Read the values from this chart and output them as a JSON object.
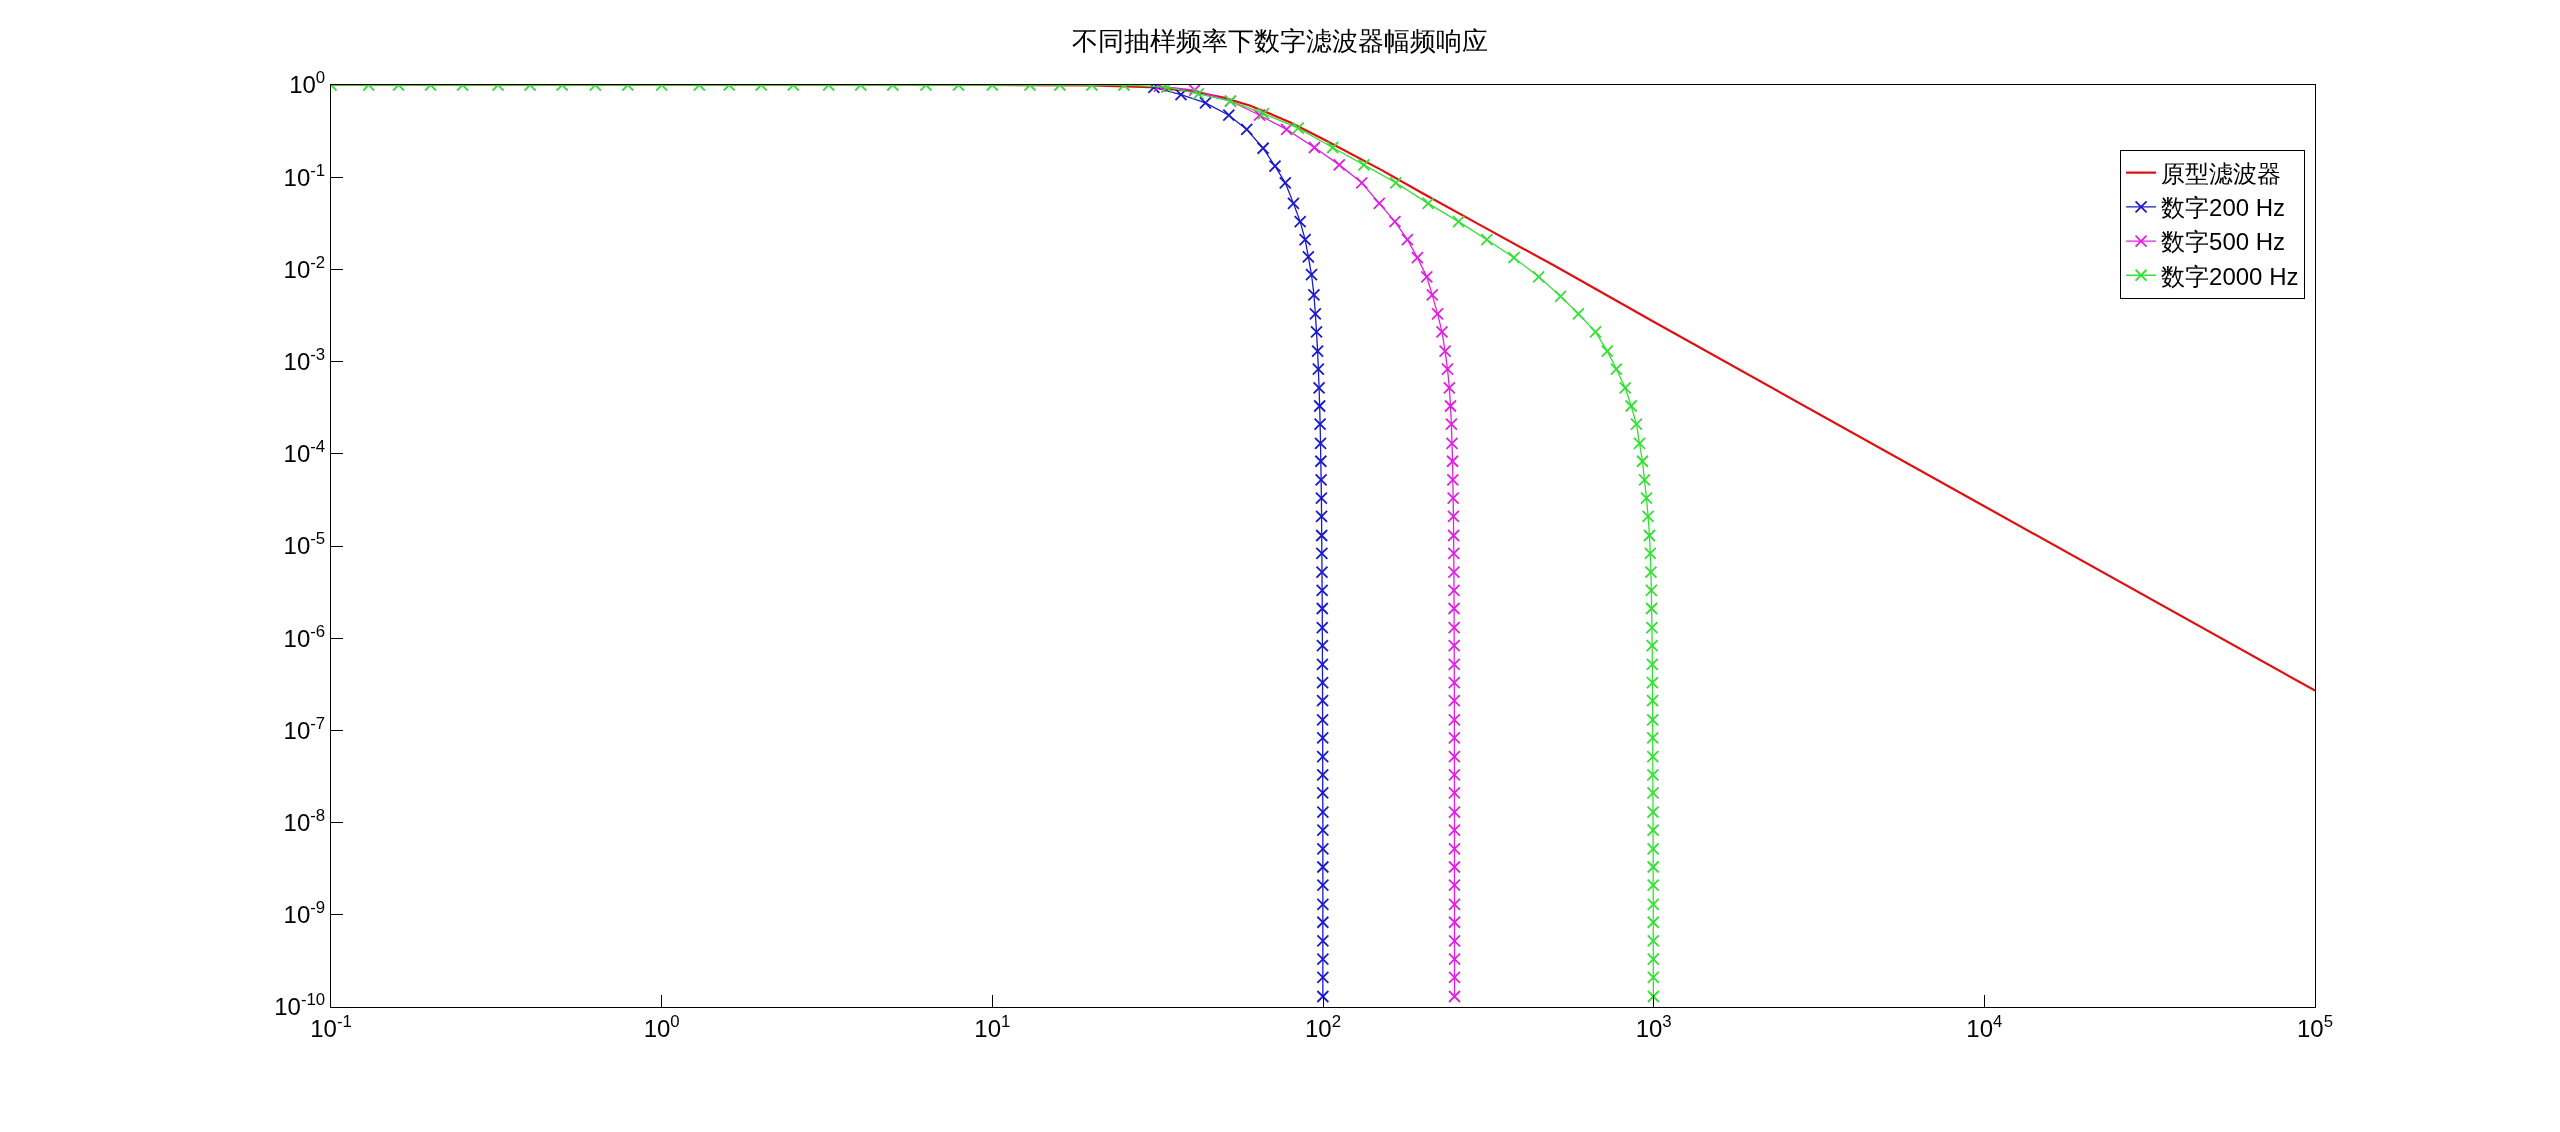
{
  "chart_data": {
    "type": "line",
    "title": "不同抽样频率下数字滤波器幅频响应",
    "log": "xy",
    "legend": "top right",
    "xlim": [
      0.1,
      100000
    ],
    "ylim": [
      1e-10,
      1
    ],
    "xticks": [
      {
        "value": 0.1,
        "label": "10$^{-1}$"
      },
      {
        "value": 1,
        "label": "10$^{0}$"
      },
      {
        "value": 10,
        "label": "10$^{1}$"
      },
      {
        "value": 100,
        "label": "10$^{2}$"
      },
      {
        "value": 1000,
        "label": "10$^{3}$"
      },
      {
        "value": 10000,
        "label": "10$^{4}$"
      },
      {
        "value": 100000,
        "label": "10$^{5}$"
      }
    ],
    "yticks": [
      {
        "value": 1,
        "label": "10$^{0}$"
      },
      {
        "value": 0.1,
        "label": "10$^{-1}$"
      },
      {
        "value": 0.01,
        "label": "10$^{-2}$"
      },
      {
        "value": 0.001,
        "label": "10$^{-3}$"
      },
      {
        "value": 0.0001,
        "label": "10$^{-4}$"
      },
      {
        "value": 1e-05,
        "label": "10$^{-5}$"
      },
      {
        "value": 1e-06,
        "label": "10$^{-6}$"
      },
      {
        "value": 1e-07,
        "label": "10$^{-7}$"
      },
      {
        "value": 1e-08,
        "label": "10$^{-8}$"
      },
      {
        "value": 1e-09,
        "label": "10$^{-9}$"
      },
      {
        "value": 1e-10,
        "label": "10$^{-10}$"
      }
    ],
    "series": [
      {
        "name": "原型滤波器",
        "color": "#e01010",
        "marker": "none",
        "x": [
          0.1,
          10,
          20,
          30,
          40,
          50,
          60,
          70,
          80,
          100,
          150,
          200,
          300,
          500,
          1000,
          10000,
          100000
        ],
        "values": [
          1,
          1,
          0.99,
          0.95,
          0.86,
          0.73,
          0.6,
          0.48,
          0.39,
          0.26,
          0.12,
          0.067,
          0.03,
          0.011,
          0.0027,
          2.7e-05,
          2.7e-07
        ]
      },
      {
        "name": "数字200 Hz",
        "color": "#1a1acc",
        "marker": "cross",
        "x": [
          30.8,
          37.2,
          44.1,
          51.9,
          58.8,
          65.9,
          71.6,
          76.9,
          81.4,
          85.3,
          88.3,
          90.3,
          92.3,
          93.9,
          94.8,
          95.6,
          96.3,
          96.8,
          97.3,
          97.7,
          98,
          98.3,
          98.5,
          98.7,
          98.9,
          99,
          99.1,
          99.2,
          99.3,
          99.4,
          99.5,
          99.5,
          99.6,
          99.6,
          99.7,
          99.7,
          99.7,
          99.8,
          99.8,
          99.8,
          99.8,
          99.9,
          99.9,
          99.9,
          99.9,
          99.9,
          99.9,
          99.9,
          99.9,
          99.9,
          99.9,
          99.9
        ],
        "values": [
          0.94,
          0.785,
          0.64,
          0.47,
          0.33,
          0.206,
          0.132,
          0.087,
          0.052,
          0.033,
          0.021,
          0.0137,
          0.0088,
          0.0053,
          0.0033,
          0.0021,
          0.0013,
          0.00083,
          0.00052,
          0.00033,
          0.00021,
          0.00013,
          8.3e-05,
          5.2e-05,
          3.3e-05,
          2.1e-05,
          1.3e-05,
          8.3e-06,
          5.2e-06,
          3.3e-06,
          2.1e-06,
          1.3e-06,
          8.3e-07,
          5.2e-07,
          3.3e-07,
          2.1e-07,
          1.3e-07,
          8.3e-08,
          5.2e-08,
          3.3e-08,
          2.1e-08,
          1.3e-08,
          8.3e-09,
          5.2e-09,
          3.3e-09,
          2.1e-09,
          1.3e-09,
          8.3e-10,
          5.2e-10,
          3.3e-10,
          2.1e-10,
          1.3e-10
        ]
      },
      {
        "name": "数字500 Hz",
        "color": "#e020e0",
        "marker": "cross",
        "x": [
          32,
          40.9,
          52.5,
          64.3,
          77.6,
          94.2,
          112,
          131,
          148,
          165,
          180,
          193,
          206,
          214,
          222,
          229,
          234,
          238,
          241,
          243,
          244.5,
          245.5,
          246.5,
          247,
          247.5,
          248,
          248.3,
          248.6,
          248.8,
          249,
          249.1,
          249.2,
          249.3,
          249.4,
          249.5,
          249.5,
          249.6,
          249.6,
          249.7,
          249.7,
          249.7,
          249.8,
          249.8,
          249.8,
          249.8,
          249.8,
          249.9,
          249.9,
          249.9,
          249.9,
          249.9,
          249.9
        ],
        "values": [
          0.97,
          0.88,
          0.67,
          0.47,
          0.33,
          0.21,
          0.136,
          0.087,
          0.052,
          0.033,
          0.021,
          0.0134,
          0.0083,
          0.0053,
          0.0033,
          0.0021,
          0.0013,
          0.00083,
          0.00052,
          0.00033,
          0.00021,
          0.00013,
          8.3e-05,
          5.2e-05,
          3.3e-05,
          2.1e-05,
          1.3e-05,
          8.3e-06,
          5.2e-06,
          3.3e-06,
          2.1e-06,
          1.3e-06,
          8.3e-07,
          5.2e-07,
          3.3e-07,
          2.1e-07,
          1.3e-07,
          8.3e-08,
          5.2e-08,
          3.3e-08,
          2.1e-08,
          1.3e-08,
          8.3e-09,
          5.2e-09,
          3.3e-09,
          2.1e-09,
          1.3e-09,
          8.3e-10,
          5.2e-10,
          3.3e-10,
          2.1e-10,
          1.3e-10
        ]
      },
      {
        "name": "数字2000 Hz",
        "color": "#33e033",
        "marker": "cross",
        "x": [
          0.1,
          0.13,
          0.16,
          0.2,
          0.25,
          0.32,
          0.4,
          0.5,
          0.63,
          0.79,
          1,
          1.3,
          1.6,
          2,
          2.5,
          3.2,
          4,
          5,
          6.3,
          7.9,
          10,
          13,
          16,
          20,
          25,
          33.7,
          42,
          52.5,
          66.1,
          84.1,
          107,
          133,
          166,
          208,
          257,
          313,
          378,
          449,
          523,
          592,
          667,
          724,
          771,
          820,
          855,
          887,
          906,
          925,
          938,
          951,
          962,
          971,
          977,
          981,
          984,
          986,
          988,
          989.5,
          990.5,
          991.5,
          992.5,
          993,
          993.5,
          994,
          994.5,
          995,
          995.5,
          996,
          996,
          996.5,
          996.5,
          997,
          997,
          997,
          997.5,
          997.5,
          998
        ],
        "values": [
          1,
          1,
          1,
          1,
          1,
          1,
          1,
          1,
          1,
          1,
          1,
          1,
          1,
          1,
          1,
          1,
          1,
          1,
          1,
          1,
          1,
          1,
          1,
          1,
          1,
          0.95,
          0.8,
          0.67,
          0.49,
          0.34,
          0.21,
          0.136,
          0.087,
          0.052,
          0.033,
          0.021,
          0.0134,
          0.0083,
          0.0051,
          0.0033,
          0.0021,
          0.0013,
          0.00083,
          0.00052,
          0.00033,
          0.00021,
          0.00013,
          8.3e-05,
          5.2e-05,
          3.3e-05,
          2.1e-05,
          1.3e-05,
          8.3e-06,
          5.2e-06,
          3.3e-06,
          2.1e-06,
          1.3e-06,
          8.3e-07,
          5.2e-07,
          3.3e-07,
          2.1e-07,
          1.3e-07,
          8.3e-08,
          5.2e-08,
          3.3e-08,
          2.1e-08,
          1.3e-08,
          8.3e-09,
          5.2e-09,
          3.3e-09,
          2.1e-09,
          1.3e-09,
          8.3e-10,
          5.2e-10,
          3.3e-10,
          2.1e-10,
          1.3e-10
        ]
      }
    ]
  }
}
